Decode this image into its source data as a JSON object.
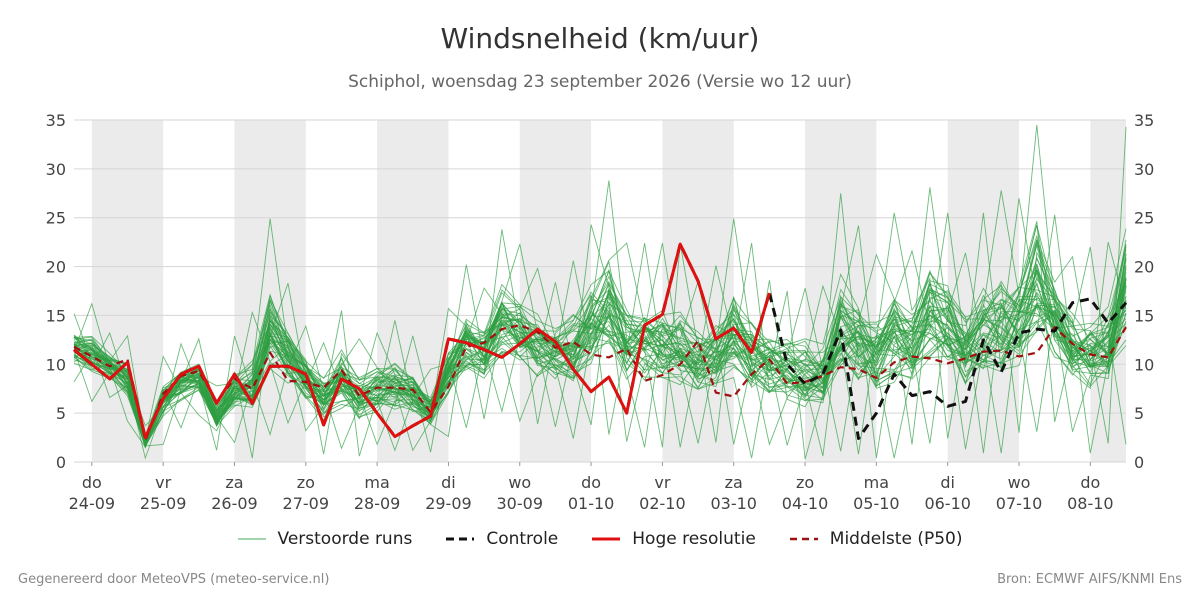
{
  "title": "Windsnelheid (km/uur)",
  "subtitle": "Schiphol, woensdag 23 september 2026 (Versie wo 12 uur)",
  "footer": {
    "left": "Gegenereerd door MeteoVPS (meteo-service.nl)",
    "right": "Bron: ECMWF AIFS/KNMI Ens"
  },
  "legend": [
    {
      "label": "Verstoorde runs",
      "color": "#2e9e41",
      "style": "thin"
    },
    {
      "label": "Controle",
      "color": "#111111",
      "style": "dashed"
    },
    {
      "label": "Hoge resolutie",
      "color": "#e01010",
      "style": "solid"
    },
    {
      "label": "Middelste (P50)",
      "color": "#a01010",
      "style": "dashed"
    }
  ],
  "chart_data": {
    "type": "line",
    "ylim": [
      0,
      35
    ],
    "yticks": [
      0,
      5,
      10,
      15,
      20,
      25,
      30,
      35
    ],
    "xlim": [
      -0.25,
      14.5
    ],
    "x_unit": "days from 24-09",
    "xticks": [
      {
        "day": "do",
        "date": "24-09"
      },
      {
        "day": "vr",
        "date": "25-09"
      },
      {
        "day": "za",
        "date": "26-09"
      },
      {
        "day": "zo",
        "date": "27-09"
      },
      {
        "day": "ma",
        "date": "28-09"
      },
      {
        "day": "di",
        "date": "29-09"
      },
      {
        "day": "wo",
        "date": "30-09"
      },
      {
        "day": "do",
        "date": "01-10"
      },
      {
        "day": "vr",
        "date": "02-10"
      },
      {
        "day": "za",
        "date": "03-10"
      },
      {
        "day": "zo",
        "date": "04-10"
      },
      {
        "day": "ma",
        "date": "05-10"
      },
      {
        "day": "di",
        "date": "06-10"
      },
      {
        "day": "wo",
        "date": "07-10"
      },
      {
        "day": "do",
        "date": "08-10"
      }
    ],
    "shaded_days": [
      0,
      2,
      4,
      6,
      8,
      10,
      12,
      14
    ],
    "grid": true,
    "series": [
      {
        "name": "Hoge resolutie",
        "color": "#e01010",
        "x": [
          -0.25,
          0,
          0.25,
          0.5,
          0.75,
          1,
          1.25,
          1.5,
          1.75,
          2,
          2.25,
          2.5,
          2.75,
          3,
          3.25,
          3.5,
          3.75,
          4,
          4.25,
          4.5,
          4.75,
          5,
          5.25,
          5.5,
          5.75,
          6,
          6.25,
          6.5,
          6.75,
          7,
          7.25,
          7.5,
          7.75,
          8,
          8.25,
          8.5,
          8.75,
          9,
          9.25,
          9.5
        ],
        "y": [
          11.5,
          10,
          8.5,
          10.2,
          2.5,
          6.5,
          9,
          9.8,
          6,
          9,
          6,
          9.8,
          9.8,
          9,
          3.8,
          8.5,
          7.5,
          5,
          2.6,
          3.7,
          4.7,
          12.6,
          12.2,
          11.5,
          10.7,
          12.1,
          13.6,
          12.3,
          9.5,
          7.2,
          8.7,
          5,
          14,
          15.1,
          22.3,
          18.5,
          12.6,
          13.7,
          11.2,
          17.3
        ]
      },
      {
        "name": "Controle",
        "color": "#111111",
        "x": [
          -0.25,
          0,
          0.25,
          0.5,
          0.75,
          1,
          1.25,
          1.5,
          1.75,
          2,
          2.25,
          2.5,
          2.75,
          3,
          3.25,
          3.5,
          3.75,
          4,
          4.25,
          4.5,
          4.75,
          5,
          5.25,
          5.5,
          5.75,
          6,
          6.25,
          6.5,
          6.75,
          7,
          7.25,
          7.5,
          7.75,
          8,
          8.25,
          8.5,
          8.75,
          9,
          9.25,
          9.5,
          9.75,
          10,
          10.25,
          10.5,
          10.75,
          11,
          11.25,
          11.5,
          11.75,
          12,
          12.25,
          12.5,
          12.75,
          13,
          13.25,
          13.5,
          13.75,
          14,
          14.25,
          14.5
        ],
        "y": [
          11.5,
          10,
          8.5,
          10.2,
          2.5,
          6.5,
          9,
          9.8,
          6,
          9,
          6,
          9.8,
          9.8,
          9,
          3.8,
          8.5,
          7.5,
          5,
          2.6,
          3.7,
          4.7,
          12.6,
          12.2,
          11.5,
          10.7,
          12.1,
          13.6,
          12.3,
          9.5,
          7.2,
          8.7,
          5,
          14,
          15.1,
          22.3,
          18.5,
          12.6,
          13.7,
          11.2,
          17.3,
          10,
          8,
          9,
          13.5,
          2.4,
          5,
          9,
          6.8,
          7.2,
          5.7,
          6.2,
          12.5,
          9.2,
          13.2,
          13.6,
          13.4,
          16.3,
          16.7,
          14.2,
          16.3
        ]
      },
      {
        "name": "Middelste (P50)",
        "color": "#a01010",
        "x": [
          -0.25,
          0,
          0.25,
          0.5,
          0.75,
          1,
          1.25,
          1.5,
          1.75,
          2,
          2.25,
          2.5,
          2.75,
          3,
          3.25,
          3.5,
          3.75,
          4,
          4.25,
          4.5,
          4.75,
          5,
          5.25,
          5.5,
          5.75,
          6,
          6.25,
          6.5,
          6.75,
          7,
          7.25,
          7.5,
          7.75,
          8,
          8.25,
          8.5,
          8.75,
          9,
          9.25,
          9.5,
          9.75,
          10,
          10.25,
          10.5,
          10.75,
          11,
          11.25,
          11.5,
          11.75,
          12,
          12.25,
          12.5,
          12.75,
          13,
          13.25,
          13.5,
          13.75,
          14,
          14.25,
          14.5
        ],
        "y": [
          11.8,
          10.8,
          9.8,
          10.5,
          2.2,
          7,
          8.8,
          9.3,
          6.2,
          8.5,
          7.5,
          11.2,
          8.3,
          8.2,
          7.6,
          9.4,
          6.8,
          7.6,
          7.6,
          7.4,
          5.1,
          7.7,
          11.8,
          12.2,
          13.6,
          14,
          13.3,
          11.7,
          12.3,
          11,
          10.7,
          11.6,
          8.3,
          8.9,
          10,
          12.4,
          7.1,
          6.7,
          9,
          10.5,
          8,
          8.2,
          8.8,
          9.7,
          9.5,
          8.6,
          10.2,
          10.8,
          10.6,
          10.1,
          10.6,
          11.3,
          11.4,
          10.8,
          11.2,
          13.8,
          12.1,
          11,
          10.7,
          13.8
        ]
      }
    ],
    "ensemble": {
      "name": "Verstoorde runs",
      "color": "#2e9e41",
      "members": 50,
      "x_step": 0.25,
      "seed": 7,
      "max_values": [
        15.2,
        16.2,
        13.2,
        12.9,
        3.7,
        10.8,
        12.1,
        12.6,
        7.8,
        12.9,
        15.3,
        24.9,
        18.3,
        13.9,
        12.2,
        15.5,
        12.6,
        13.2,
        14.5,
        12.9,
        9.5,
        15.7,
        20.2,
        17.8,
        23.8,
        22.3,
        19.8,
        18.4,
        20.6,
        24.3,
        28.8,
        22.4,
        22.4,
        22.4,
        22.4,
        18.5,
        20.1,
        24.9,
        22.4,
        18.6,
        17.5,
        17.8,
        18,
        27.5,
        24.2,
        21.2,
        25.5,
        21.6,
        28.1,
        25.5,
        21.4,
        25.5,
        27.8,
        27,
        34.5,
        25.3,
        21,
        22,
        22.5,
        34.3
      ],
      "min_values": [
        8.2,
        6.2,
        6.6,
        4.2,
        0.4,
        1.8,
        3.5,
        4.8,
        1.2,
        2,
        0.4,
        2.8,
        4,
        3.2,
        0.8,
        1.4,
        0.6,
        1.8,
        1.2,
        1.2,
        1,
        2.6,
        3.5,
        4.4,
        5.2,
        4.2,
        3.9,
        3.6,
        2.4,
        3.8,
        2.8,
        2.1,
        1.5,
        1.5,
        1.5,
        1.9,
        2,
        1.8,
        0.4,
        1.8,
        1.7,
        0.3,
        0.6,
        1.1,
        0.8,
        0.4,
        0.4,
        1.8,
        1.9,
        2.4,
        1.3,
        0.9,
        0.9,
        3,
        3.1,
        4.1,
        3.1,
        0.9,
        1.9,
        1.8
      ]
    }
  }
}
